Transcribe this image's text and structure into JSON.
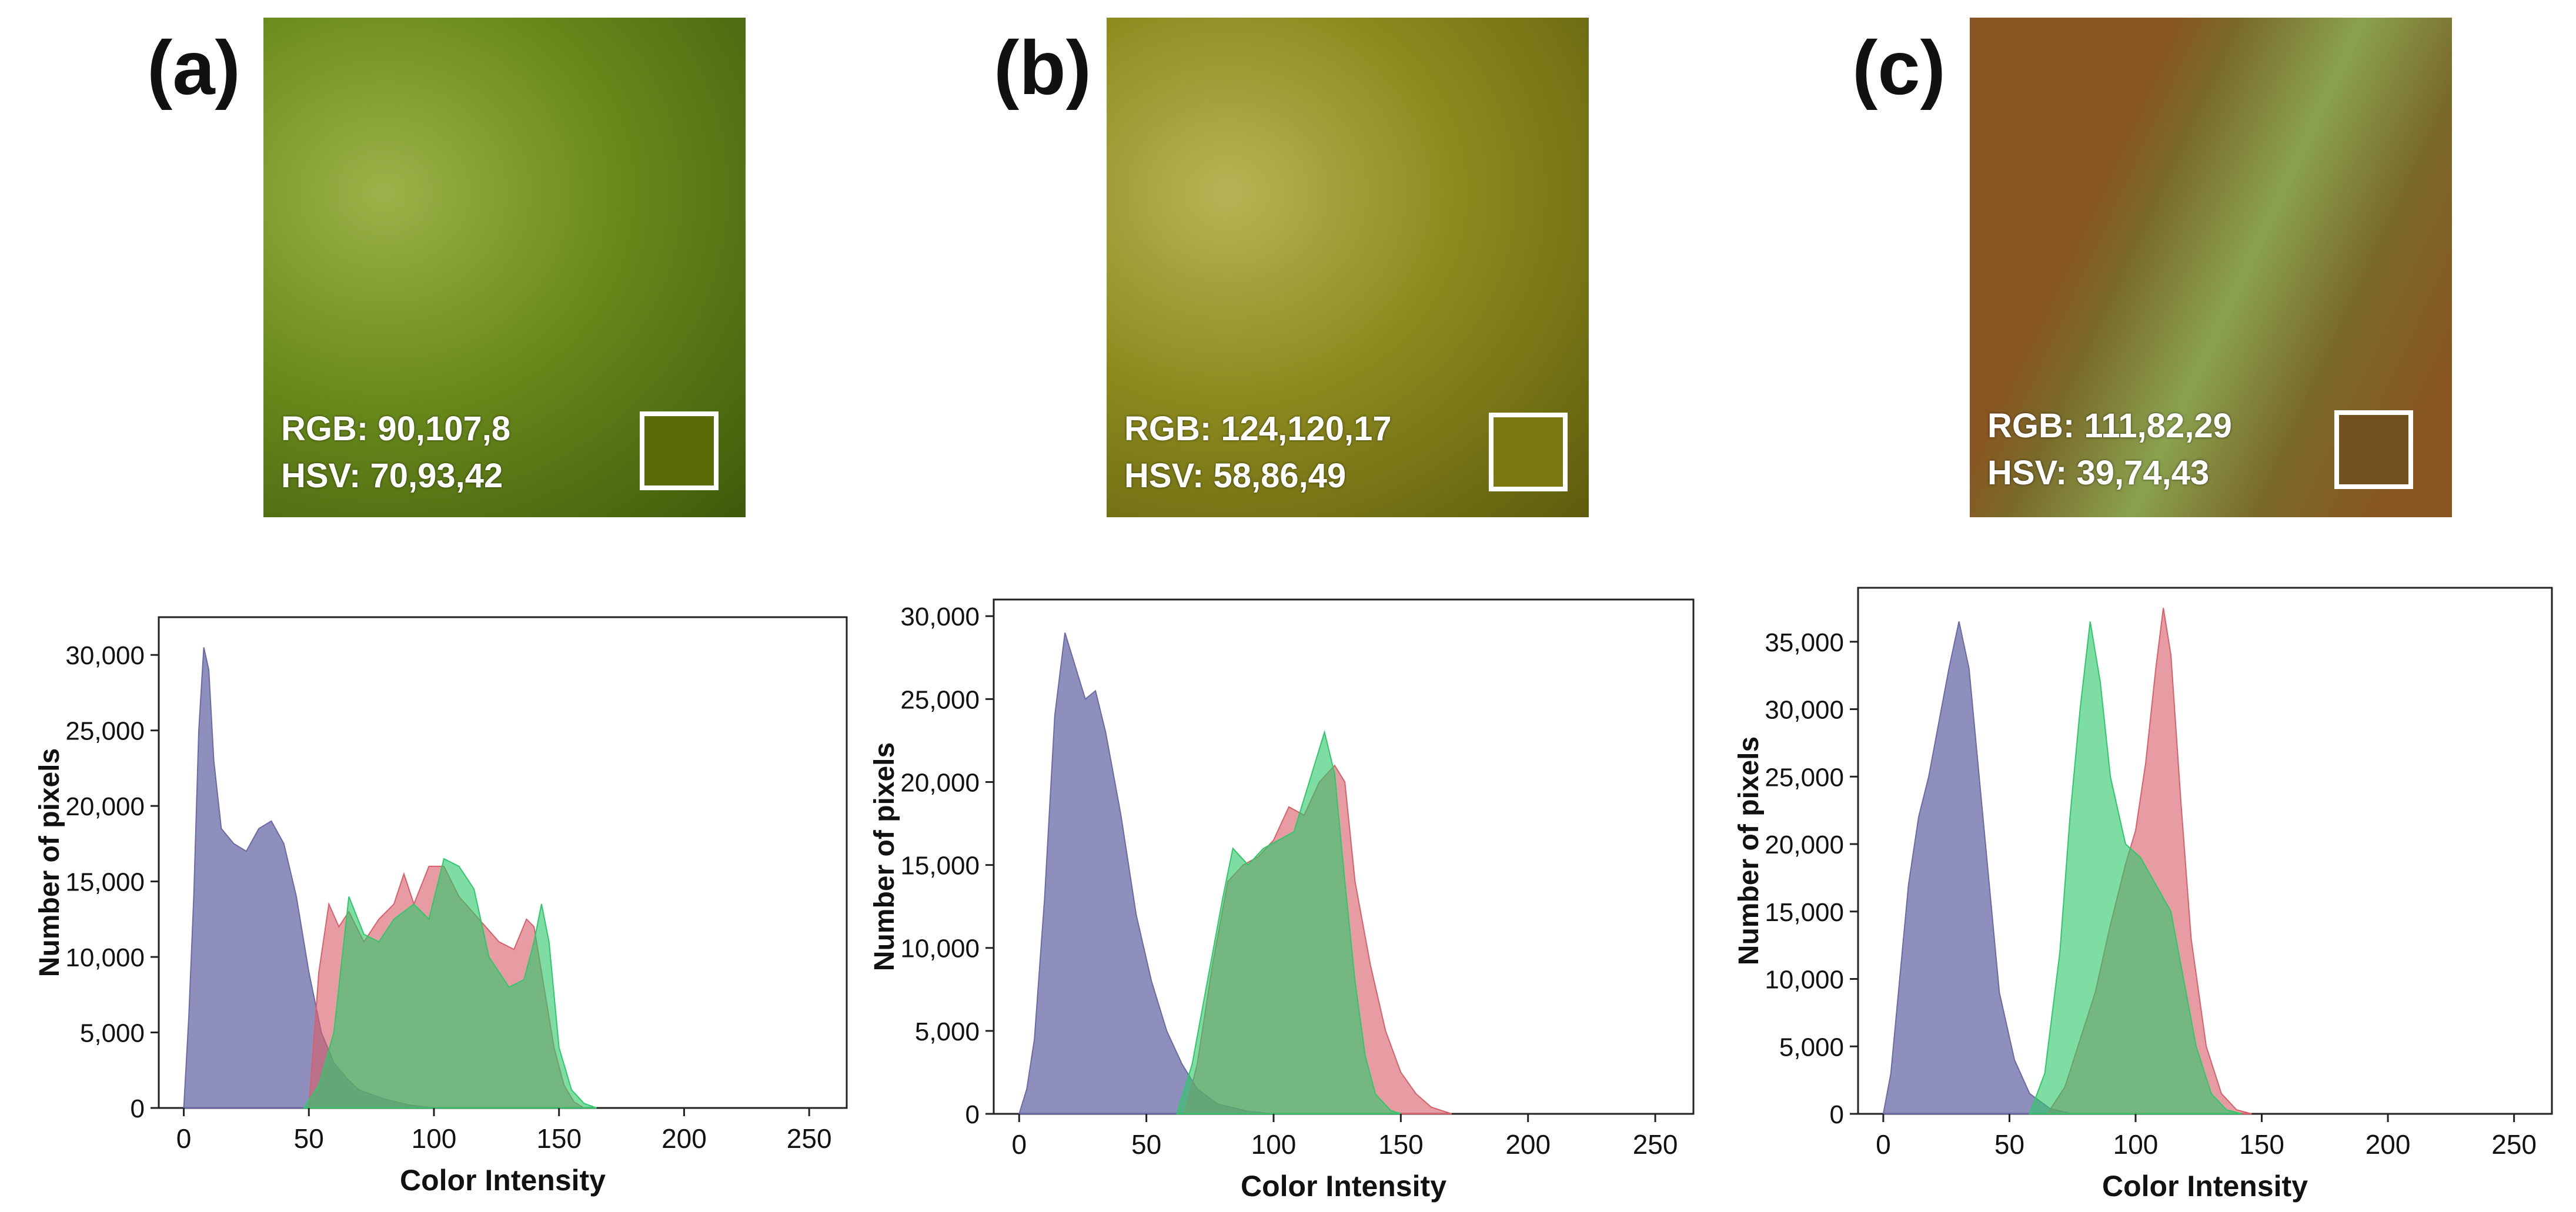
{
  "panels": [
    {
      "label": "(a)",
      "rgb_text": "RGB: 90,107,8",
      "hsv_text": "HSV: 70,93,42",
      "swatch_color": "#5a6b08",
      "photo_base": "#6a8a1c",
      "photo_light": "#9cb24a",
      "photo_dark": "#3e5a0a"
    },
    {
      "label": "(b)",
      "rgb_text": "RGB: 124,120,17",
      "hsv_text": "HSV: 58,86,49",
      "swatch_color": "#7c7811",
      "photo_base": "#8c8a1e",
      "photo_light": "#b8b456",
      "photo_dark": "#5e5c0c"
    },
    {
      "label": "(c)",
      "rgb_text": "RGB: 111,82,29",
      "hsv_text": "HSV: 39,74,43",
      "swatch_color": "#6f521d",
      "photo_base": "#7a6a2a",
      "photo_light": "#8aa24e",
      "photo_dark": "#8a5420"
    }
  ],
  "colors": {
    "red": "#d9606a",
    "green": "#2ec86a",
    "blue": "#6a6aa8",
    "axis": "#222222"
  },
  "chart_data": [
    {
      "type": "histogram",
      "title": "",
      "xlabel": "Color Intensity",
      "ylabel": "Number of pixels",
      "xlim": [
        -10,
        265
      ],
      "ylim": [
        0,
        32500
      ],
      "xticks": [
        0,
        50,
        100,
        150,
        200,
        250
      ],
      "yticks": [
        0,
        5000,
        10000,
        15000,
        20000,
        25000,
        30000
      ],
      "ytick_labels": [
        "0",
        "5,000",
        "10,000",
        "15,000",
        "20,000",
        "25,000",
        "30,000"
      ],
      "series": [
        {
          "name": "Blue",
          "color": "blue",
          "points": [
            [
              0,
              0
            ],
            [
              2,
              6000
            ],
            [
              4,
              14000
            ],
            [
              6,
              25000
            ],
            [
              8,
              30500
            ],
            [
              10,
              29000
            ],
            [
              12,
              23000
            ],
            [
              15,
              18500
            ],
            [
              20,
              17500
            ],
            [
              25,
              17000
            ],
            [
              30,
              18500
            ],
            [
              35,
              19000
            ],
            [
              40,
              17500
            ],
            [
              45,
              14000
            ],
            [
              50,
              9000
            ],
            [
              55,
              5000
            ],
            [
              60,
              3000
            ],
            [
              65,
              2000
            ],
            [
              70,
              1200
            ],
            [
              80,
              600
            ],
            [
              90,
              200
            ],
            [
              100,
              0
            ]
          ]
        },
        {
          "name": "Red",
          "color": "red",
          "points": [
            [
              50,
              0
            ],
            [
              54,
              9000
            ],
            [
              58,
              13500
            ],
            [
              62,
              12000
            ],
            [
              66,
              13000
            ],
            [
              72,
              11000
            ],
            [
              78,
              12500
            ],
            [
              84,
              13500
            ],
            [
              88,
              15500
            ],
            [
              92,
              13500
            ],
            [
              98,
              16000
            ],
            [
              104,
              16000
            ],
            [
              110,
              14000
            ],
            [
              118,
              12500
            ],
            [
              126,
              11000
            ],
            [
              132,
              10500
            ],
            [
              137,
              12500
            ],
            [
              140,
              12000
            ],
            [
              144,
              8000
            ],
            [
              148,
              4000
            ],
            [
              152,
              1500
            ],
            [
              156,
              400
            ],
            [
              160,
              0
            ]
          ]
        },
        {
          "name": "Green",
          "color": "green",
          "points": [
            [
              48,
              0
            ],
            [
              54,
              1500
            ],
            [
              60,
              5000
            ],
            [
              66,
              14000
            ],
            [
              72,
              11500
            ],
            [
              78,
              11000
            ],
            [
              84,
              12500
            ],
            [
              92,
              13500
            ],
            [
              98,
              12500
            ],
            [
              104,
              16500
            ],
            [
              110,
              16000
            ],
            [
              116,
              14500
            ],
            [
              122,
              10000
            ],
            [
              130,
              8000
            ],
            [
              136,
              8500
            ],
            [
              140,
              11000
            ],
            [
              143,
              13500
            ],
            [
              146,
              11000
            ],
            [
              150,
              4000
            ],
            [
              155,
              1200
            ],
            [
              160,
              300
            ],
            [
              165,
              0
            ]
          ]
        }
      ]
    },
    {
      "type": "histogram",
      "title": "",
      "xlabel": "Color Intensity",
      "ylabel": "Number of pixels",
      "xlim": [
        -10,
        265
      ],
      "ylim": [
        0,
        31000
      ],
      "xticks": [
        0,
        50,
        100,
        150,
        200,
        250
      ],
      "yticks": [
        0,
        5000,
        10000,
        15000,
        20000,
        25000,
        30000
      ],
      "ytick_labels": [
        "0",
        "5,000",
        "10,000",
        "15,000",
        "20,000",
        "25,000",
        "30,000"
      ],
      "series": [
        {
          "name": "Blue",
          "color": "blue",
          "points": [
            [
              0,
              0
            ],
            [
              3,
              1500
            ],
            [
              6,
              4500
            ],
            [
              10,
              13000
            ],
            [
              14,
              24000
            ],
            [
              18,
              29000
            ],
            [
              22,
              27000
            ],
            [
              26,
              25000
            ],
            [
              30,
              25500
            ],
            [
              34,
              23000
            ],
            [
              40,
              18000
            ],
            [
              46,
              12000
            ],
            [
              52,
              8000
            ],
            [
              58,
              5000
            ],
            [
              64,
              3000
            ],
            [
              70,
              1500
            ],
            [
              78,
              600
            ],
            [
              90,
              150
            ],
            [
              100,
              0
            ]
          ]
        },
        {
          "name": "Red",
          "color": "red",
          "points": [
            [
              65,
              0
            ],
            [
              70,
              3000
            ],
            [
              76,
              9000
            ],
            [
              82,
              14000
            ],
            [
              88,
              15000
            ],
            [
              94,
              15500
            ],
            [
              100,
              16500
            ],
            [
              106,
              18500
            ],
            [
              112,
              18000
            ],
            [
              118,
              20000
            ],
            [
              124,
              21000
            ],
            [
              128,
              20000
            ],
            [
              132,
              14000
            ],
            [
              138,
              9000
            ],
            [
              144,
              5000
            ],
            [
              150,
              2500
            ],
            [
              156,
              1200
            ],
            [
              162,
              400
            ],
            [
              170,
              0
            ]
          ]
        },
        {
          "name": "Green",
          "color": "green",
          "points": [
            [
              62,
              0
            ],
            [
              68,
              3000
            ],
            [
              74,
              8000
            ],
            [
              80,
              13000
            ],
            [
              84,
              16000
            ],
            [
              90,
              15000
            ],
            [
              96,
              16000
            ],
            [
              102,
              16500
            ],
            [
              108,
              17000
            ],
            [
              114,
              20000
            ],
            [
              120,
              23000
            ],
            [
              124,
              20500
            ],
            [
              128,
              14000
            ],
            [
              132,
              8000
            ],
            [
              136,
              3500
            ],
            [
              140,
              1200
            ],
            [
              146,
              200
            ],
            [
              150,
              0
            ]
          ]
        }
      ]
    },
    {
      "type": "histogram",
      "title": "",
      "xlabel": "Color Intensity",
      "ylabel": "Number of pixels",
      "xlim": [
        -10,
        265
      ],
      "ylim": [
        0,
        39000
      ],
      "xticks": [
        0,
        50,
        100,
        150,
        200,
        250
      ],
      "yticks": [
        0,
        5000,
        10000,
        15000,
        20000,
        25000,
        30000,
        35000
      ],
      "ytick_labels": [
        "0",
        "5,000",
        "10,000",
        "15,000",
        "20,000",
        "25,000",
        "30,000",
        "35,000"
      ],
      "series": [
        {
          "name": "Blue",
          "color": "blue",
          "points": [
            [
              0,
              0
            ],
            [
              3,
              3000
            ],
            [
              6,
              9000
            ],
            [
              10,
              17000
            ],
            [
              14,
              22000
            ],
            [
              18,
              25000
            ],
            [
              22,
              29000
            ],
            [
              26,
              33000
            ],
            [
              30,
              36500
            ],
            [
              34,
              33000
            ],
            [
              38,
              25000
            ],
            [
              42,
              17000
            ],
            [
              46,
              9000
            ],
            [
              52,
              4000
            ],
            [
              58,
              1500
            ],
            [
              66,
              400
            ],
            [
              75,
              0
            ]
          ]
        },
        {
          "name": "Red",
          "color": "red",
          "points": [
            [
              65,
              0
            ],
            [
              72,
              2000
            ],
            [
              78,
              5500
            ],
            [
              84,
              9000
            ],
            [
              90,
              14000
            ],
            [
              96,
              18500
            ],
            [
              100,
              21000
            ],
            [
              104,
              26000
            ],
            [
              108,
              33000
            ],
            [
              111,
              37500
            ],
            [
              114,
              34000
            ],
            [
              118,
              23000
            ],
            [
              122,
              13000
            ],
            [
              128,
              5000
            ],
            [
              134,
              1500
            ],
            [
              140,
              300
            ],
            [
              146,
              0
            ]
          ]
        },
        {
          "name": "Green",
          "color": "green",
          "points": [
            [
              58,
              0
            ],
            [
              64,
              3000
            ],
            [
              70,
              12000
            ],
            [
              74,
              22000
            ],
            [
              78,
              30000
            ],
            [
              82,
              36500
            ],
            [
              86,
              32000
            ],
            [
              90,
              25000
            ],
            [
              96,
              20000
            ],
            [
              102,
              19000
            ],
            [
              108,
              17000
            ],
            [
              114,
              15000
            ],
            [
              118,
              11000
            ],
            [
              124,
              5000
            ],
            [
              130,
              1500
            ],
            [
              136,
              300
            ],
            [
              142,
              0
            ]
          ]
        }
      ]
    }
  ]
}
